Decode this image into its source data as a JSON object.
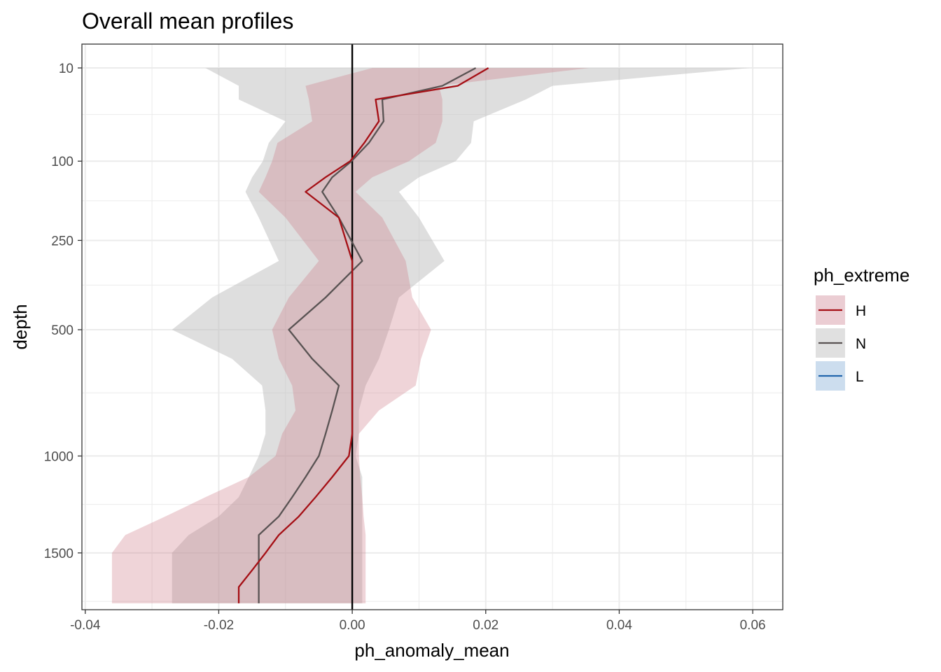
{
  "chart_data": {
    "type": "line",
    "title": "Overall mean profiles",
    "xlabel": "ph_anomaly_mean",
    "ylabel": "depth",
    "xlim": [
      -0.0405,
      0.0645
    ],
    "y_scale": "reverse-sqrt",
    "ylim_depth": [
      2,
      1840
    ],
    "x_ticks": [
      -0.04,
      -0.02,
      0.0,
      0.02,
      0.04,
      0.06
    ],
    "x_tick_labels": [
      "-0.04",
      "-0.02",
      "0.00",
      "0.02",
      "0.04",
      "0.06"
    ],
    "y_ticks": [
      10,
      100,
      250,
      500,
      1000,
      1500
    ],
    "y_tick_labels": [
      "10",
      "100",
      "250",
      "500",
      "1000",
      "1500"
    ],
    "vline_x": 0,
    "grid": true,
    "legend": {
      "title": "ph_extreme",
      "position": "right",
      "items": [
        {
          "key": "H",
          "label": "H",
          "line_color": "#A50F15",
          "fill_color": "#EBCDD3"
        },
        {
          "key": "N",
          "label": "N",
          "line_color": "#595353",
          "fill_color": "#E0E0E0"
        },
        {
          "key": "L",
          "label": "L",
          "line_color": "#2166AC",
          "fill_color": "#CCDDEE"
        }
      ]
    },
    "series": [
      {
        "name": "N",
        "line_color": "#595353",
        "fill_color": "#BEBEBE",
        "fill_opacity": 0.5,
        "depth": [
          10,
          20,
          30,
          50,
          75,
          100,
          125,
          150,
          200,
          300,
          400,
          500,
          600,
          700,
          800,
          900,
          1000,
          1100,
          1200,
          1300,
          1400,
          1500,
          1600,
          1700,
          1800
        ],
        "mean": [
          0.0185,
          0.0135,
          0.0045,
          0.0047,
          0.0025,
          -0.0001,
          -0.003,
          -0.0045,
          -0.002,
          0.0015,
          -0.004,
          -0.0095,
          -0.006,
          -0.002,
          -0.003,
          -0.004,
          -0.005,
          -0.007,
          -0.009,
          -0.011,
          -0.014,
          -0.014,
          -0.014,
          -0.014,
          -0.014
        ],
        "lower": [
          -0.022,
          -0.017,
          -0.017,
          -0.01,
          -0.0125,
          -0.0134,
          -0.015,
          -0.016,
          -0.014,
          -0.011,
          -0.021,
          -0.027,
          -0.018,
          -0.0135,
          -0.013,
          -0.013,
          -0.014,
          -0.0155,
          -0.017,
          -0.02,
          -0.0245,
          -0.027,
          -0.027,
          -0.027,
          -0.027
        ],
        "upper": [
          0.0595,
          0.03,
          0.026,
          0.0182,
          0.0178,
          0.0155,
          0.01,
          0.007,
          0.01,
          0.0138,
          0.007,
          0.0055,
          0.004,
          0.002,
          0.001,
          0.001,
          0.0005,
          0.0015,
          0.0015,
          0.0015,
          0.0015,
          0.0015,
          0.0015,
          0.0015,
          0.0015
        ]
      },
      {
        "name": "H",
        "line_color": "#A50F15",
        "fill_color": "#C9707F",
        "fill_opacity": 0.3,
        "depth": [
          10,
          20,
          30,
          50,
          75,
          100,
          125,
          150,
          200,
          300,
          400,
          500,
          600,
          700,
          800,
          900,
          1000,
          1100,
          1200,
          1300,
          1400,
          1500,
          1600,
          1700,
          1800
        ],
        "mean": [
          0.0204,
          0.0158,
          0.0035,
          0.004,
          0.0018,
          -0.0003,
          -0.004,
          -0.007,
          -0.002,
          0.0,
          0.0,
          0.0,
          0.0,
          0.0,
          0.0,
          0.0,
          -0.0005,
          -0.003,
          -0.0055,
          -0.008,
          -0.011,
          -0.013,
          -0.015,
          -0.017,
          -0.017
        ],
        "lower": [
          0.003,
          -0.007,
          -0.0065,
          -0.006,
          -0.0112,
          -0.012,
          -0.013,
          -0.014,
          -0.01,
          -0.005,
          -0.0095,
          -0.012,
          -0.011,
          -0.009,
          -0.0085,
          -0.0105,
          -0.0115,
          -0.0155,
          -0.022,
          -0.028,
          -0.034,
          -0.036,
          -0.036,
          -0.036,
          -0.036
        ],
        "upper": [
          0.0355,
          0.013,
          0.0135,
          0.0135,
          0.0125,
          0.0085,
          0.003,
          0.0005,
          0.0045,
          0.008,
          0.009,
          0.0118,
          0.0103,
          0.0095,
          0.004,
          0.001,
          0.001,
          0.0012,
          0.0015,
          0.0017,
          0.002,
          0.002,
          0.002,
          0.002,
          0.002
        ]
      }
    ]
  }
}
